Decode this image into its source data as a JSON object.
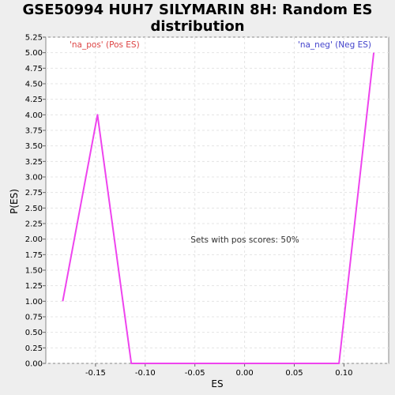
{
  "chart_data": {
    "type": "line",
    "title_line1": "GSE50994 HUH7 SILYMARIN 8H: Random ES",
    "title_line2": "distribution",
    "xlabel": "ES",
    "ylabel": "P(ES)",
    "xlim": [
      -0.2,
      0.145
    ],
    "ylim": [
      0,
      5.25
    ],
    "x_ticks": [
      -0.15,
      -0.1,
      -0.05,
      0.0,
      0.05,
      0.1
    ],
    "x_tick_labels": [
      "-0.15",
      "-0.10",
      "-0.05",
      "0.00",
      "0.05",
      "0.10"
    ],
    "y_ticks": [
      0,
      0.25,
      0.5,
      0.75,
      1.0,
      1.25,
      1.5,
      1.75,
      2.0,
      2.25,
      2.5,
      2.75,
      3.0,
      3.25,
      3.5,
      3.75,
      4.0,
      4.25,
      4.5,
      4.75,
      5.0,
      5.25
    ],
    "y_tick_labels": [
      "0.00",
      "0.25",
      "0.50",
      "0.75",
      "1.00",
      "1.25",
      "1.50",
      "1.75",
      "2.00",
      "2.25",
      "2.50",
      "2.75",
      "3.00",
      "3.25",
      "3.50",
      "3.75",
      "4.00",
      "4.25",
      "4.50",
      "4.75",
      "5.00",
      "5.25"
    ],
    "grid": true,
    "series": [
      {
        "color": "#ee44ee",
        "x": [
          -0.183,
          -0.148,
          -0.114,
          0.095,
          0.13
        ],
        "y": [
          1.0,
          4.0,
          0.0,
          0.0,
          5.0
        ]
      }
    ],
    "corner_left": "'na_pos' (Pos ES)",
    "corner_left_color": "#dd4444",
    "corner_right": "'na_neg' (Neg ES)",
    "corner_right_color": "#4444cc",
    "annotation": "Sets with pos scores: 50%"
  }
}
